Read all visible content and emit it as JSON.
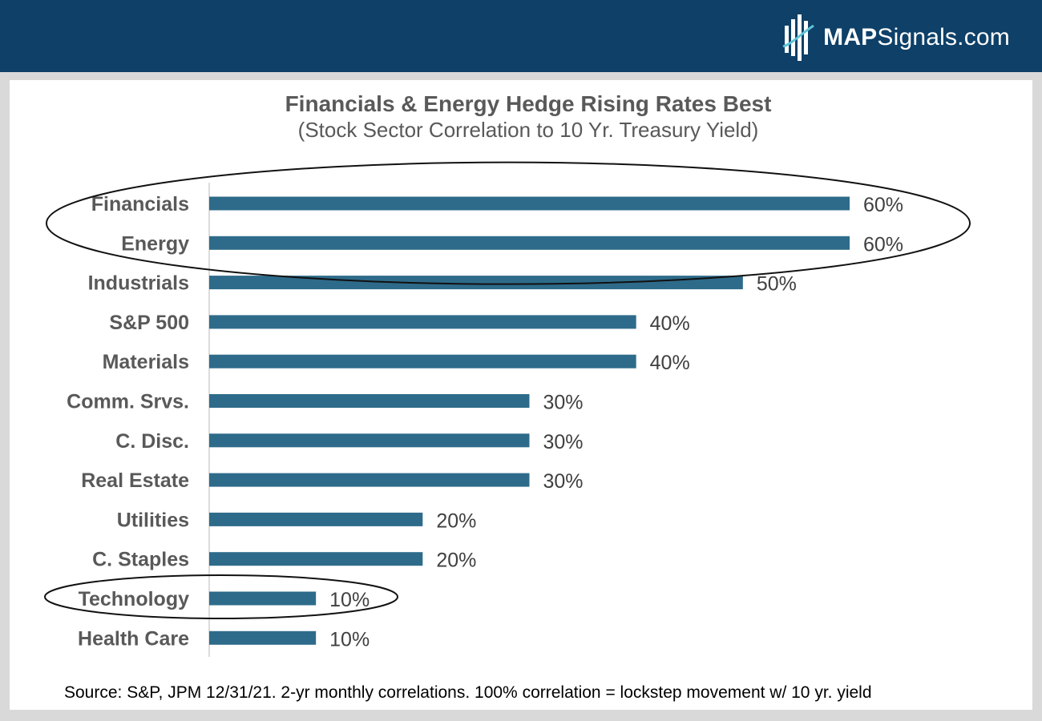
{
  "header": {
    "brand_bold": "MAP",
    "brand_light": "Signals.com",
    "logo_icon": "mapsignals-logo-icon",
    "bg_color": "#0e4068"
  },
  "chart_data": {
    "type": "bar",
    "orientation": "horizontal",
    "title": "Financials & Energy Hedge Rising Rates Best",
    "subtitle": "(Stock Sector Correlation to 10 Yr. Treasury Yield)",
    "categories": [
      "Financials",
      "Energy",
      "Industrials",
      "S&P 500",
      "Materials",
      "Comm. Srvs.",
      "C. Disc.",
      "Real Estate",
      "Utilities",
      "C. Staples",
      "Technology",
      "Health Care"
    ],
    "values": [
      60,
      60,
      50,
      40,
      40,
      30,
      30,
      30,
      20,
      20,
      10,
      10
    ],
    "value_labels": [
      "60%",
      "60%",
      "50%",
      "40%",
      "40%",
      "30%",
      "30%",
      "30%",
      "20%",
      "20%",
      "10%",
      "10%"
    ],
    "xlim": [
      0,
      60
    ],
    "bar_color": "#2e6b8a",
    "grid": false,
    "highlighted": [
      [
        "Financials",
        "Energy"
      ],
      [
        "Technology"
      ]
    ]
  },
  "source": "Source: S&P, JPM 12/31/21. 2-yr monthly correlations. 100% correlation = lockstep movement w/ 10 yr. yield"
}
